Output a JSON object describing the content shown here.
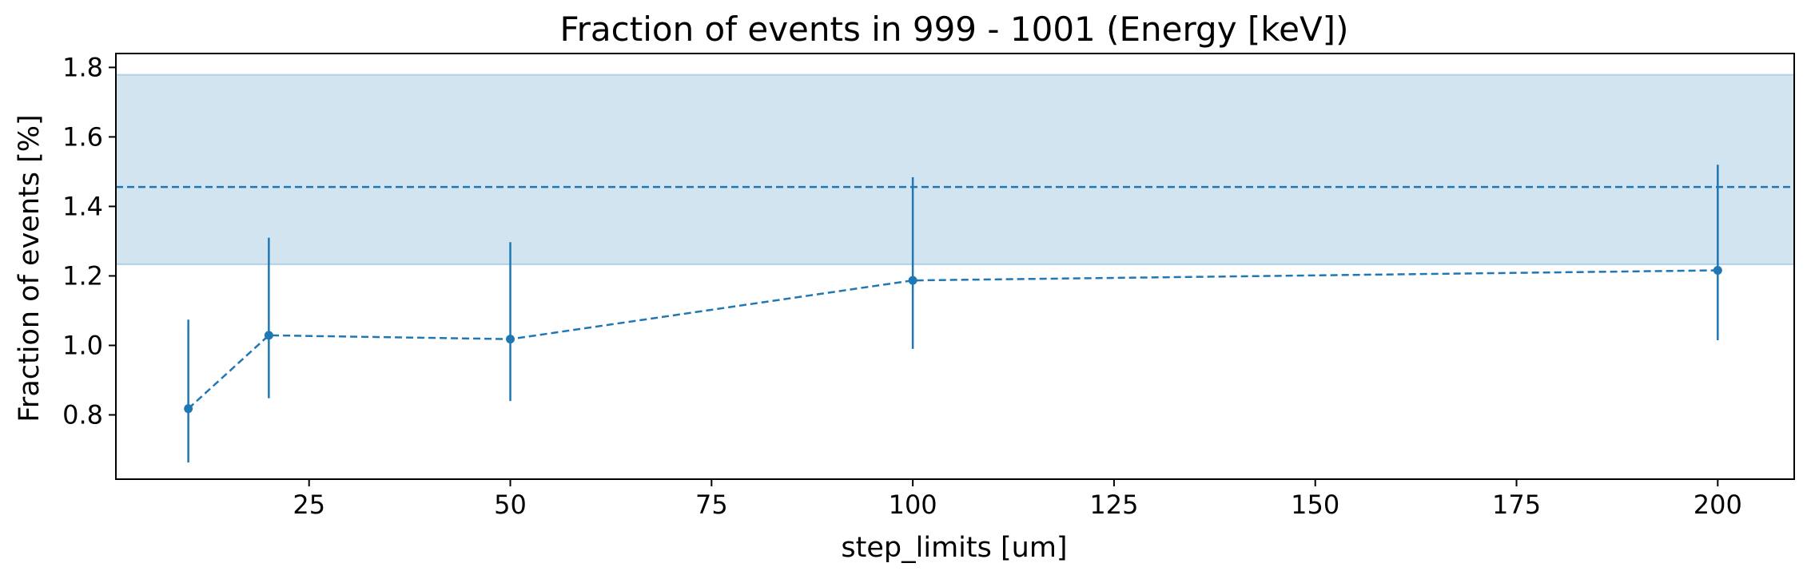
{
  "chart_data": {
    "type": "line",
    "title": "Fraction of events in 999 - 1001 (Energy [keV])",
    "xlabel": "step_limits [um]",
    "ylabel": "Fraction of events [%]",
    "xlim": [
      1,
      209.5
    ],
    "ylim": [
      0.615,
      1.84
    ],
    "xticks": [
      25,
      50,
      75,
      100,
      125,
      150,
      175,
      200
    ],
    "yticks": [
      0.8,
      1.0,
      1.2,
      1.4,
      1.6,
      1.8
    ],
    "xtick_labels": [
      "25",
      "50",
      "75",
      "100",
      "125",
      "150",
      "175",
      "200"
    ],
    "ytick_labels": [
      "0.8",
      "1.0",
      "1.2",
      "1.4",
      "1.6",
      "1.8"
    ],
    "grid": false,
    "color": "#1f77b4",
    "reference": {
      "value": 1.456,
      "band_low": 1.233,
      "band_high": 1.779,
      "line_style": "dashed",
      "band_color": "#1f77b4",
      "band_opacity": 0.2
    },
    "series": [
      {
        "line_style": "dashed",
        "marker": "circle",
        "x": [
          10,
          20,
          50,
          100,
          200
        ],
        "y": [
          0.818,
          1.029,
          1.018,
          1.187,
          1.216
        ],
        "yerr_low": [
          0.663,
          0.848,
          0.84,
          0.99,
          1.015
        ],
        "yerr_high": [
          1.074,
          1.31,
          1.297,
          1.484,
          1.52
        ]
      }
    ]
  }
}
